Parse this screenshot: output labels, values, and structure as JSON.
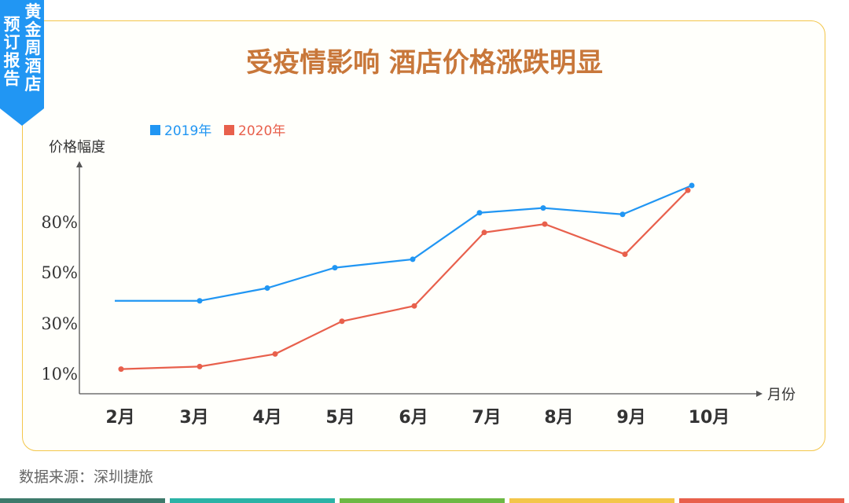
{
  "ribbon": {
    "col1": "黄金周酒店",
    "col2": "预订报告",
    "color": "#2196f3"
  },
  "title": "受疫情影响 酒店价格涨跌明显",
  "source": "数据来源：深圳捷旅",
  "colors": {
    "accent": "#c8773a",
    "border": "#f3c64a",
    "series2019": "#2196f3",
    "series2020": "#e8604c"
  },
  "bottom_bar_colors": [
    "#3d7a6b",
    "#2bb3a6",
    "#6cb944",
    "#f3c64a",
    "#e8604c"
  ],
  "chart_data": {
    "type": "line",
    "categories": [
      "2月",
      "3月",
      "4月",
      "5月",
      "6月",
      "7月",
      "8月",
      "9月",
      "10月"
    ],
    "ylabel": "价格幅度",
    "xlabel": "月份",
    "yticks": [
      {
        "label": "10%",
        "value": 10
      },
      {
        "label": "30%",
        "value": 30
      },
      {
        "label": "50%",
        "value": 50
      },
      {
        "label": "80%",
        "value": 80
      }
    ],
    "legend_position": "top-left",
    "series": [
      {
        "name": "2019年",
        "color": "#2196f3",
        "values": [
          39,
          39,
          44,
          53,
          58,
          86,
          89,
          85,
          103
        ]
      },
      {
        "name": "2020年",
        "color": "#e8604c",
        "values": [
          12,
          13,
          18,
          31,
          37,
          74,
          79,
          61,
          100
        ]
      }
    ]
  }
}
